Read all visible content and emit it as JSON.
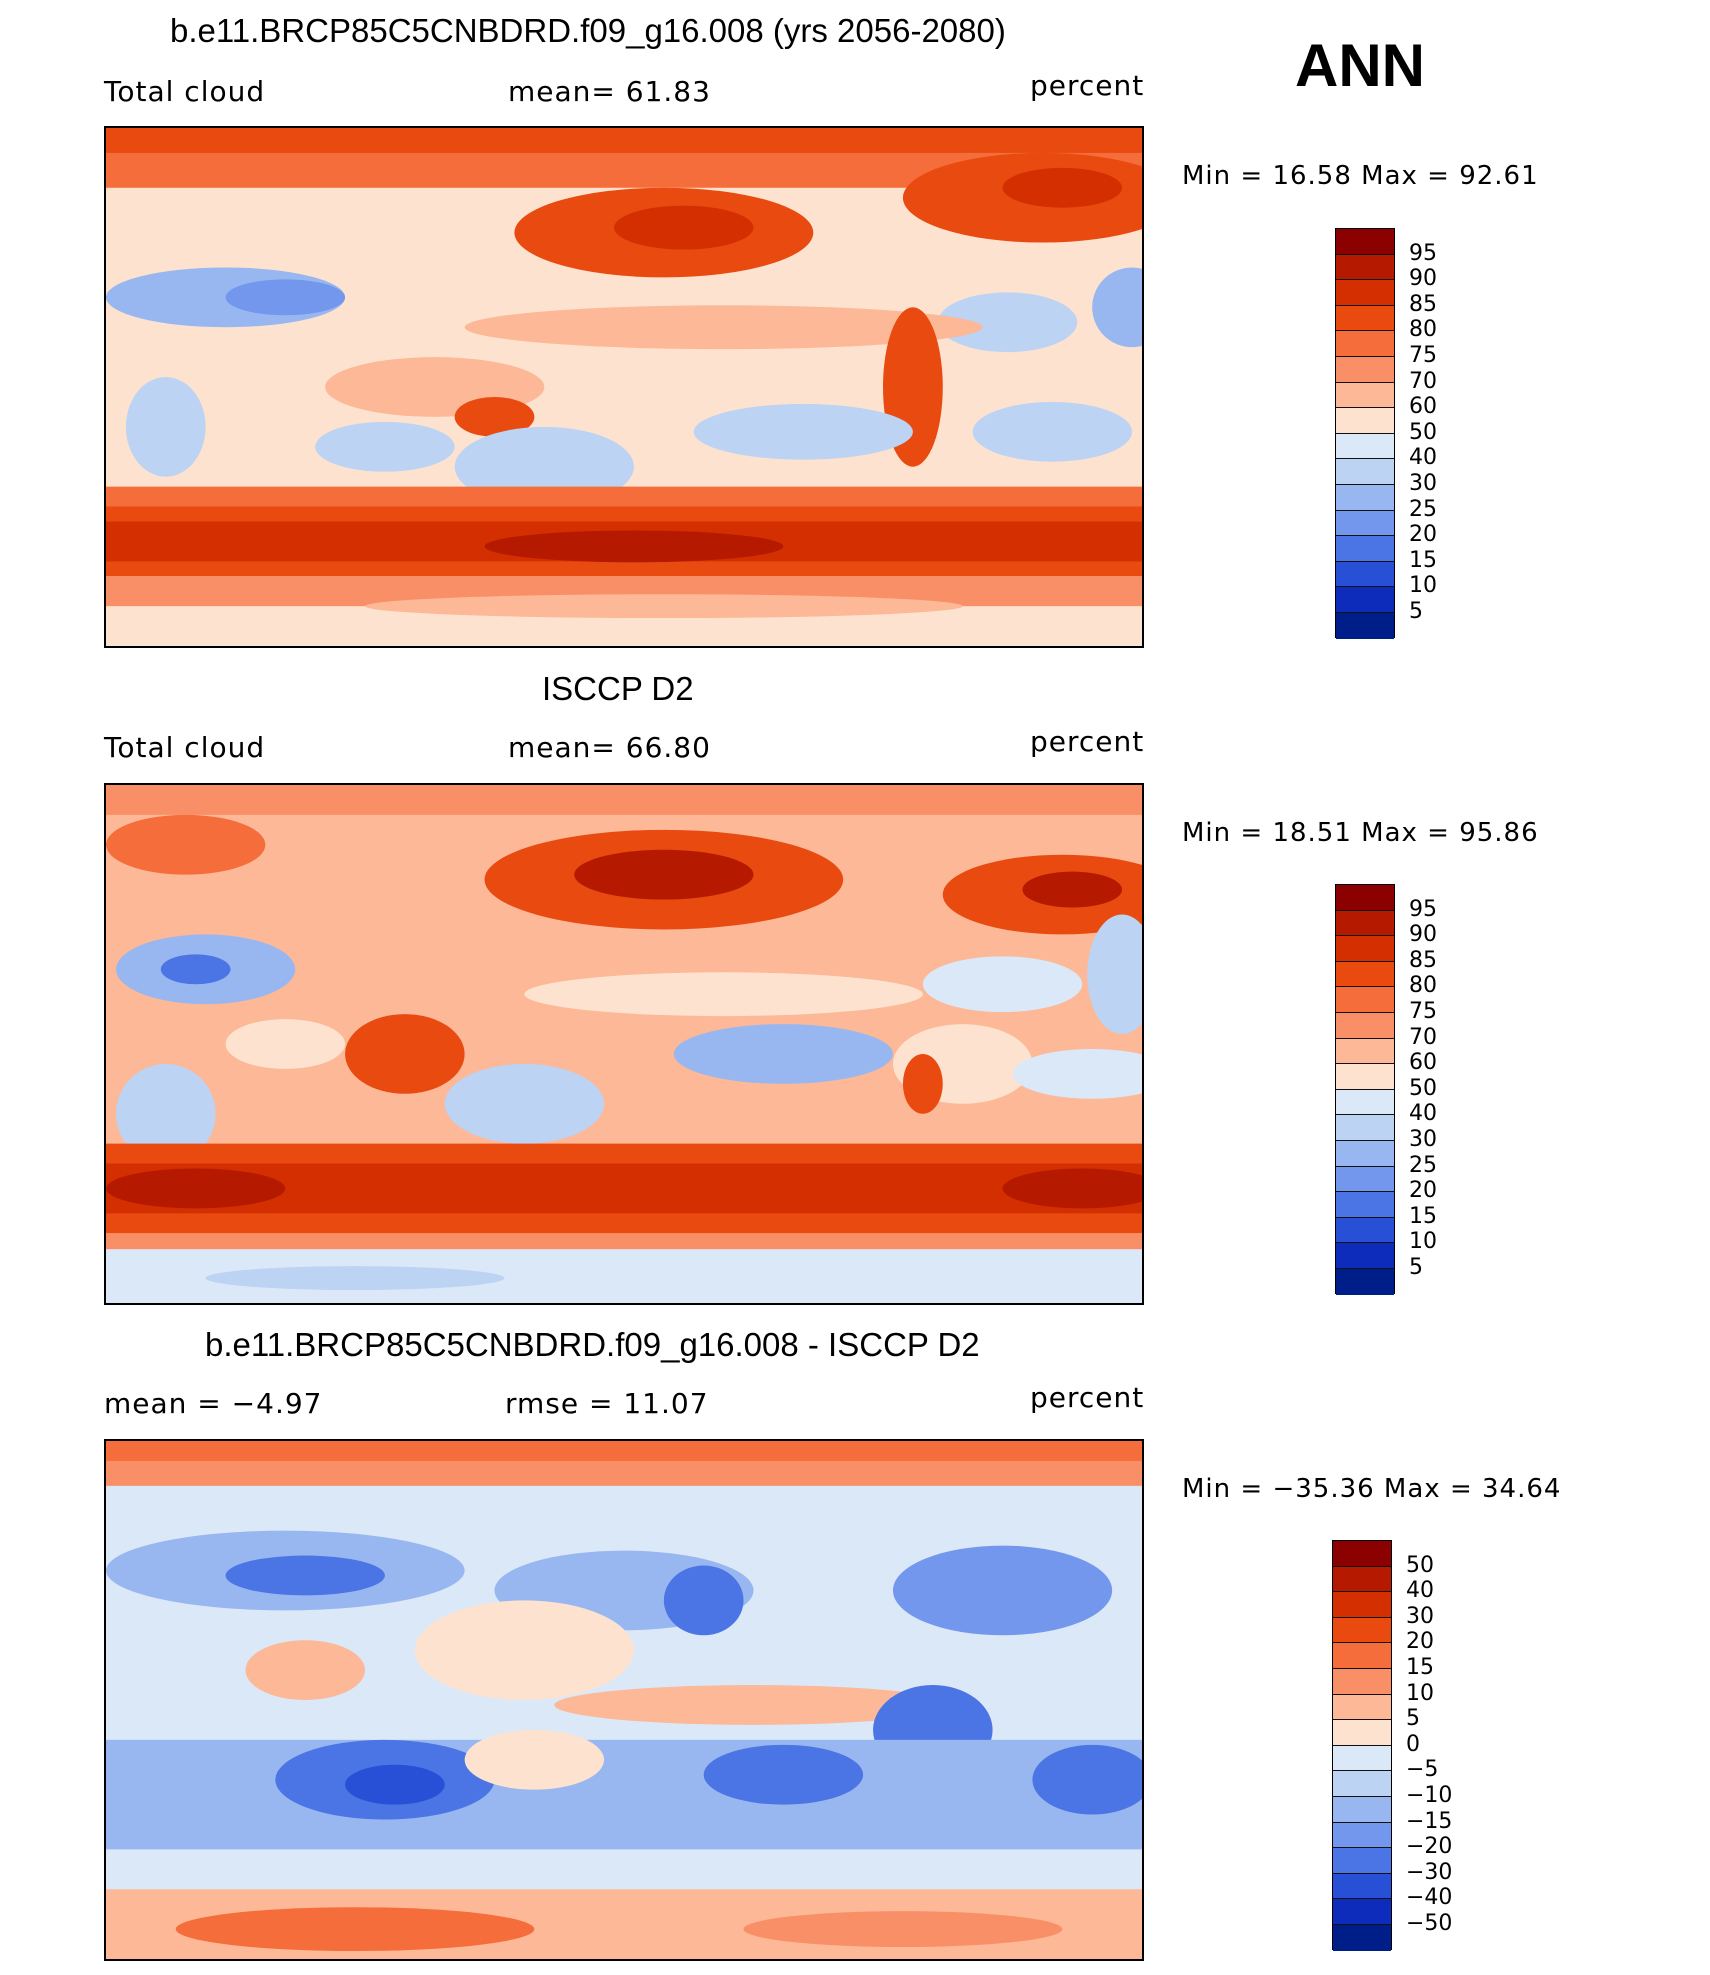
{
  "season": "ANN",
  "panels": [
    {
      "title": "b.e11.BRCP85C5CNBDRD.f09_g16.008 (yrs 2056-2080)",
      "left": "Total cloud",
      "center": "mean=   61.83",
      "right": "percent",
      "minmax": "Min =   16.58 Max =   92.61"
    },
    {
      "title": "ISCCP D2",
      "left": "Total cloud",
      "center": "mean=   66.80",
      "right": "percent",
      "minmax": "Min =   18.51 Max =   95.86"
    },
    {
      "title": "b.e11.BRCP85C5CNBDRD.f09_g16.008 - ISCCP D2",
      "left": "mean =   −4.97",
      "center": "rmse =   11.07",
      "right": "percent",
      "minmax": "Min = −35.36 Max =   34.64"
    }
  ],
  "chart_data": [
    {
      "type": "heatmap",
      "title": "b.e11.BRCP85C5CNBDRD.f09_g16.008 (yrs 2056-2080)",
      "variable": "Total cloud",
      "units": "percent",
      "mean": 61.83,
      "min": 16.58,
      "max": 92.61,
      "colorbar_levels": [
        "95",
        "90",
        "85",
        "80",
        "75",
        "70",
        "60",
        "50",
        "40",
        "30",
        "25",
        "20",
        "15",
        "10",
        "5"
      ],
      "colorbar_colors": [
        "#8b0000",
        "#b51a00",
        "#d42f00",
        "#e84a10",
        "#f46d3a",
        "#f98f66",
        "#fcb897",
        "#fde3cf",
        "#dbe8f8",
        "#bcd3f4",
        "#98b7f0",
        "#7297ec",
        "#4b74e4",
        "#2750d6",
        "#0d2cbc",
        "#001e8a"
      ]
    },
    {
      "type": "heatmap",
      "title": "ISCCP D2",
      "variable": "Total cloud",
      "units": "percent",
      "mean": 66.8,
      "min": 18.51,
      "max": 95.86,
      "colorbar_levels": [
        "95",
        "90",
        "85",
        "80",
        "75",
        "70",
        "60",
        "50",
        "40",
        "30",
        "25",
        "20",
        "15",
        "10",
        "5"
      ],
      "colorbar_colors": [
        "#8b0000",
        "#b51a00",
        "#d42f00",
        "#e84a10",
        "#f46d3a",
        "#f98f66",
        "#fcb897",
        "#fde3cf",
        "#dbe8f8",
        "#bcd3f4",
        "#98b7f0",
        "#7297ec",
        "#4b74e4",
        "#2750d6",
        "#0d2cbc",
        "#001e8a"
      ]
    },
    {
      "type": "heatmap",
      "title": "b.e11.BRCP85C5CNBDRD.f09_g16.008 - ISCCP D2",
      "units": "percent",
      "mean": -4.97,
      "rmse": 11.07,
      "min": -35.36,
      "max": 34.64,
      "colorbar_levels": [
        "50",
        "40",
        "30",
        "20",
        "15",
        "10",
        "5",
        "0",
        "−5",
        "−10",
        "−15",
        "−20",
        "−30",
        "−40",
        "−50"
      ],
      "colorbar_colors": [
        "#8b0000",
        "#b51a00",
        "#d42f00",
        "#e84a10",
        "#f46d3a",
        "#f98f66",
        "#fcb897",
        "#fde3cf",
        "#dbe8f8",
        "#bcd3f4",
        "#98b7f0",
        "#7297ec",
        "#4b74e4",
        "#2750d6",
        "#0d2cbc",
        "#001e8a"
      ]
    }
  ]
}
